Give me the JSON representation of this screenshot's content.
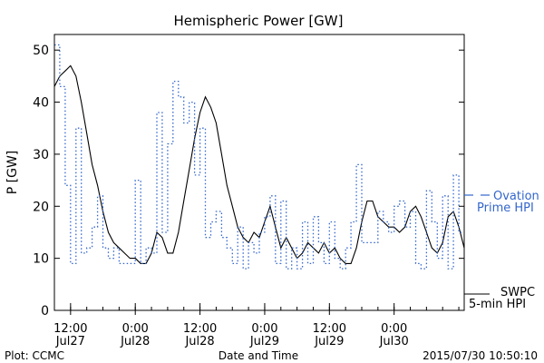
{
  "chart_data": {
    "type": "line",
    "title": "Hemispheric Power [GW]",
    "ylabel": "P [GW]",
    "xlabel": "Date and Time",
    "ylim": [
      0,
      53
    ],
    "xlim": [
      "2015-07-27 09:00",
      "2015-07-30 13:00"
    ],
    "yticks": [
      0,
      10,
      20,
      30,
      40,
      50
    ],
    "xticks": [
      {
        "time": "2015-07-27 12:00",
        "label_time": "12:00",
        "label_date": "Jul27"
      },
      {
        "time": "2015-07-28 00:00",
        "label_time": "0:00",
        "label_date": "Jul28"
      },
      {
        "time": "2015-07-28 12:00",
        "label_time": "12:00",
        "label_date": "Jul28"
      },
      {
        "time": "2015-07-29 00:00",
        "label_time": "0:00",
        "label_date": "Jul29"
      },
      {
        "time": "2015-07-29 12:00",
        "label_time": "12:00",
        "label_date": "Jul29"
      },
      {
        "time": "2015-07-30 00:00",
        "label_time": "0:00",
        "label_date": "Jul30"
      }
    ],
    "grid": false,
    "legend_position": "right",
    "series": [
      {
        "name": "SWPC 5-min HPI",
        "legend_lines": [
          "SWPC",
          "5-min HPI"
        ],
        "color": "#000000",
        "style": "solid",
        "points": [
          [
            "2015-07-27 09:00",
            43
          ],
          [
            "2015-07-27 10:00",
            45
          ],
          [
            "2015-07-27 11:00",
            46
          ],
          [
            "2015-07-27 12:00",
            47
          ],
          [
            "2015-07-27 13:00",
            45
          ],
          [
            "2015-07-27 14:00",
            40
          ],
          [
            "2015-07-27 15:00",
            34
          ],
          [
            "2015-07-27 16:00",
            28
          ],
          [
            "2015-07-27 17:00",
            24
          ],
          [
            "2015-07-27 18:00",
            19
          ],
          [
            "2015-07-27 19:00",
            15
          ],
          [
            "2015-07-27 20:00",
            13
          ],
          [
            "2015-07-27 21:00",
            12
          ],
          [
            "2015-07-27 22:00",
            11
          ],
          [
            "2015-07-27 23:00",
            10
          ],
          [
            "2015-07-28 00:00",
            10
          ],
          [
            "2015-07-28 01:00",
            9
          ],
          [
            "2015-07-28 02:00",
            9
          ],
          [
            "2015-07-28 03:00",
            11
          ],
          [
            "2015-07-28 04:00",
            15
          ],
          [
            "2015-07-28 05:00",
            14
          ],
          [
            "2015-07-28 06:00",
            11
          ],
          [
            "2015-07-28 07:00",
            11
          ],
          [
            "2015-07-28 08:00",
            15
          ],
          [
            "2015-07-28 09:00",
            21
          ],
          [
            "2015-07-28 10:00",
            27
          ],
          [
            "2015-07-28 11:00",
            33
          ],
          [
            "2015-07-28 12:00",
            38
          ],
          [
            "2015-07-28 13:00",
            41
          ],
          [
            "2015-07-28 14:00",
            39
          ],
          [
            "2015-07-28 15:00",
            36
          ],
          [
            "2015-07-28 16:00",
            30
          ],
          [
            "2015-07-28 17:00",
            24
          ],
          [
            "2015-07-28 18:00",
            20
          ],
          [
            "2015-07-28 19:00",
            16
          ],
          [
            "2015-07-28 20:00",
            14
          ],
          [
            "2015-07-28 21:00",
            13
          ],
          [
            "2015-07-28 22:00",
            15
          ],
          [
            "2015-07-28 23:00",
            14
          ],
          [
            "2015-07-29 00:00",
            17
          ],
          [
            "2015-07-29 01:00",
            20
          ],
          [
            "2015-07-29 02:00",
            16
          ],
          [
            "2015-07-29 03:00",
            12
          ],
          [
            "2015-07-29 04:00",
            14
          ],
          [
            "2015-07-29 05:00",
            12
          ],
          [
            "2015-07-29 06:00",
            10
          ],
          [
            "2015-07-29 07:00",
            11
          ],
          [
            "2015-07-29 08:00",
            13
          ],
          [
            "2015-07-29 09:00",
            12
          ],
          [
            "2015-07-29 10:00",
            11
          ],
          [
            "2015-07-29 11:00",
            13
          ],
          [
            "2015-07-29 12:00",
            11
          ],
          [
            "2015-07-29 13:00",
            12
          ],
          [
            "2015-07-29 14:00",
            10
          ],
          [
            "2015-07-29 15:00",
            9
          ],
          [
            "2015-07-29 16:00",
            9
          ],
          [
            "2015-07-29 17:00",
            12
          ],
          [
            "2015-07-29 18:00",
            17
          ],
          [
            "2015-07-29 19:00",
            21
          ],
          [
            "2015-07-29 20:00",
            21
          ],
          [
            "2015-07-29 21:00",
            18
          ],
          [
            "2015-07-29 22:00",
            17
          ],
          [
            "2015-07-29 23:00",
            16
          ],
          [
            "2015-07-30 00:00",
            16
          ],
          [
            "2015-07-30 01:00",
            15
          ],
          [
            "2015-07-30 02:00",
            16
          ],
          [
            "2015-07-30 03:00",
            19
          ],
          [
            "2015-07-30 04:00",
            20
          ],
          [
            "2015-07-30 05:00",
            18
          ],
          [
            "2015-07-30 06:00",
            15
          ],
          [
            "2015-07-30 07:00",
            12
          ],
          [
            "2015-07-30 08:00",
            11
          ],
          [
            "2015-07-30 09:00",
            13
          ],
          [
            "2015-07-30 10:00",
            18
          ],
          [
            "2015-07-30 11:00",
            19
          ],
          [
            "2015-07-30 12:00",
            16
          ],
          [
            "2015-07-30 13:00",
            12
          ]
        ]
      },
      {
        "name": "Ovation Prime HPI",
        "legend_lines": [
          "Ovation",
          "Prime HPI"
        ],
        "color": "#3366cc",
        "style": "dotted-step",
        "points": [
          [
            "2015-07-27 09:00",
            51
          ],
          [
            "2015-07-27 10:00",
            43
          ],
          [
            "2015-07-27 11:00",
            24
          ],
          [
            "2015-07-27 12:00",
            9
          ],
          [
            "2015-07-27 13:00",
            35
          ],
          [
            "2015-07-27 14:00",
            11
          ],
          [
            "2015-07-27 15:00",
            12
          ],
          [
            "2015-07-27 16:00",
            16
          ],
          [
            "2015-07-27 17:00",
            22
          ],
          [
            "2015-07-27 18:00",
            12
          ],
          [
            "2015-07-27 19:00",
            10
          ],
          [
            "2015-07-27 20:00",
            12
          ],
          [
            "2015-07-27 21:00",
            9
          ],
          [
            "2015-07-27 22:00",
            9
          ],
          [
            "2015-07-27 23:00",
            9
          ],
          [
            "2015-07-28 00:00",
            25
          ],
          [
            "2015-07-28 01:00",
            9
          ],
          [
            "2015-07-28 02:00",
            12
          ],
          [
            "2015-07-28 03:00",
            11
          ],
          [
            "2015-07-28 04:00",
            38
          ],
          [
            "2015-07-28 05:00",
            15
          ],
          [
            "2015-07-28 06:00",
            32
          ],
          [
            "2015-07-28 07:00",
            44
          ],
          [
            "2015-07-28 08:00",
            41
          ],
          [
            "2015-07-28 09:00",
            36
          ],
          [
            "2015-07-28 10:00",
            40
          ],
          [
            "2015-07-28 11:00",
            26
          ],
          [
            "2015-07-28 12:00",
            35
          ],
          [
            "2015-07-28 13:00",
            14
          ],
          [
            "2015-07-28 14:00",
            17
          ],
          [
            "2015-07-28 15:00",
            19
          ],
          [
            "2015-07-28 16:00",
            14
          ],
          [
            "2015-07-28 17:00",
            12
          ],
          [
            "2015-07-28 18:00",
            9
          ],
          [
            "2015-07-28 19:00",
            16
          ],
          [
            "2015-07-28 20:00",
            8
          ],
          [
            "2015-07-28 21:00",
            13
          ],
          [
            "2015-07-28 22:00",
            11
          ],
          [
            "2015-07-28 23:00",
            15
          ],
          [
            "2015-07-29 00:00",
            18
          ],
          [
            "2015-07-29 01:00",
            22
          ],
          [
            "2015-07-29 02:00",
            9
          ],
          [
            "2015-07-29 03:00",
            21
          ],
          [
            "2015-07-29 04:00",
            8
          ],
          [
            "2015-07-29 05:00",
            12
          ],
          [
            "2015-07-29 06:00",
            8
          ],
          [
            "2015-07-29 07:00",
            17
          ],
          [
            "2015-07-29 08:00",
            9
          ],
          [
            "2015-07-29 09:00",
            18
          ],
          [
            "2015-07-29 10:00",
            13
          ],
          [
            "2015-07-29 11:00",
            9
          ],
          [
            "2015-07-29 12:00",
            17
          ],
          [
            "2015-07-29 13:00",
            10
          ],
          [
            "2015-07-29 14:00",
            8
          ],
          [
            "2015-07-29 15:00",
            12
          ],
          [
            "2015-07-29 16:00",
            17
          ],
          [
            "2015-07-29 17:00",
            28
          ],
          [
            "2015-07-29 18:00",
            13
          ],
          [
            "2015-07-29 19:00",
            13
          ],
          [
            "2015-07-29 20:00",
            13
          ],
          [
            "2015-07-29 21:00",
            19
          ],
          [
            "2015-07-29 22:00",
            17
          ],
          [
            "2015-07-29 23:00",
            15
          ],
          [
            "2015-07-30 00:00",
            20
          ],
          [
            "2015-07-30 01:00",
            21
          ],
          [
            "2015-07-30 02:00",
            16
          ],
          [
            "2015-07-30 03:00",
            19
          ],
          [
            "2015-07-30 04:00",
            9
          ],
          [
            "2015-07-30 05:00",
            8
          ],
          [
            "2015-07-30 06:00",
            23
          ],
          [
            "2015-07-30 07:00",
            17
          ],
          [
            "2015-07-30 08:00",
            10
          ],
          [
            "2015-07-30 09:00",
            22
          ],
          [
            "2015-07-30 10:00",
            8
          ],
          [
            "2015-07-30 11:00",
            26
          ],
          [
            "2015-07-30 12:00",
            15
          ]
        ]
      }
    ]
  },
  "footer": {
    "plot_label": "Plot: CCMC",
    "xlabel": "Date and Time",
    "timestamp": "2015/07/30 10:50:10"
  }
}
